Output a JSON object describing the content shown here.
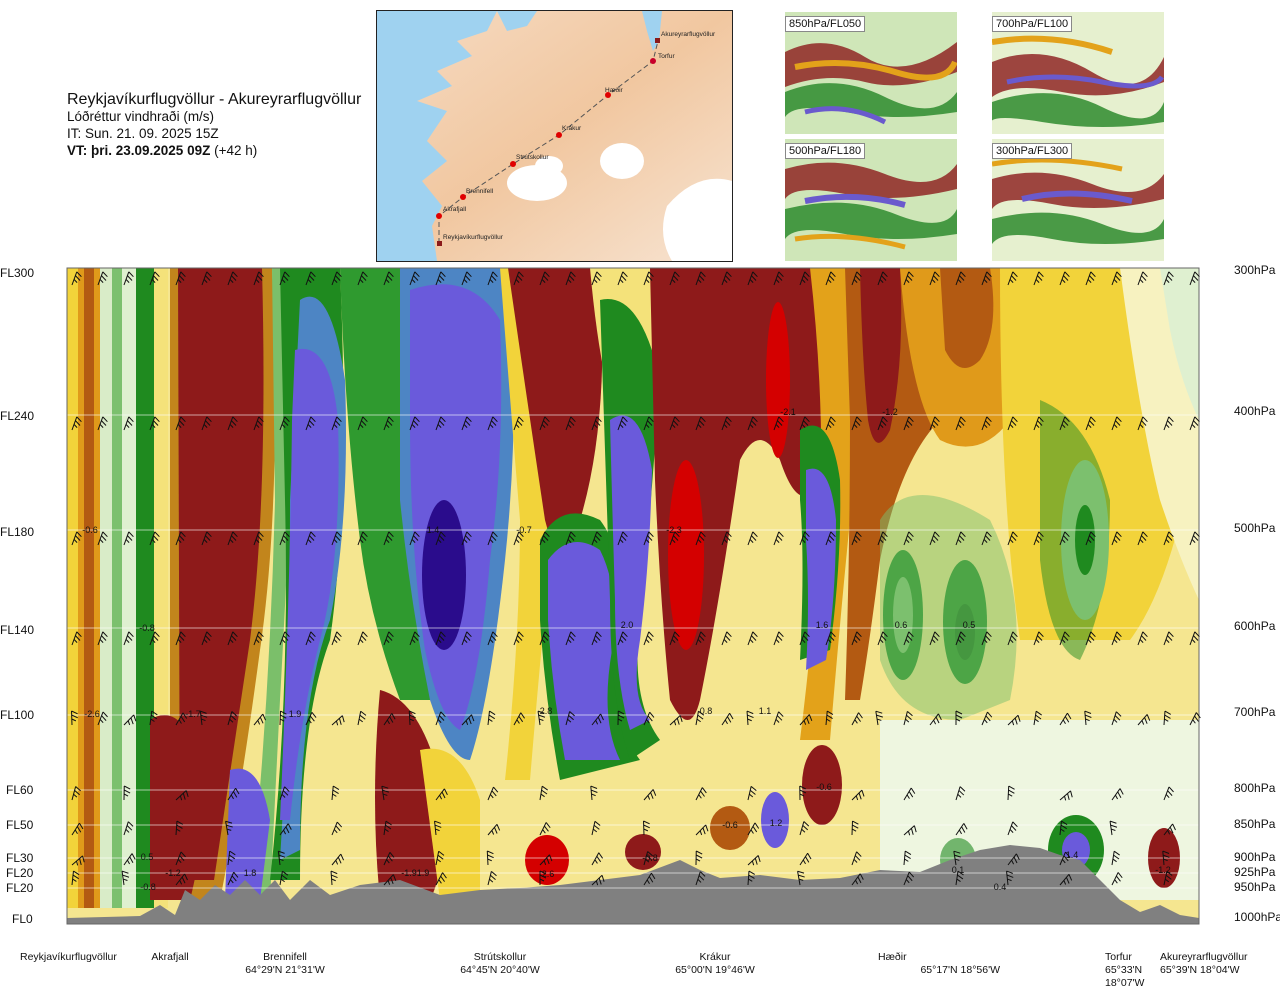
{
  "header": {
    "title": "Reykjavíkurflugvöllur - Akureyrarflugvöllur",
    "variable": "Lóðréttur vindhraði (m/s)",
    "issue_time": "IT: Sun. 21. 09. 2025 15Z",
    "valid_time_bold": "VT: þri. 23.09.2025 09Z",
    "valid_time_offset": " (+42 h)"
  },
  "route_map": {
    "stations": [
      "Akureyrarflugvöllur",
      "Torfur",
      "Hæðir",
      "Krákur",
      "Strútskollur",
      "Brennifell",
      "Akrafjall",
      "Reykjavíkurflugvöllur"
    ]
  },
  "thumbnails": [
    {
      "label": "850hPa/FL050"
    },
    {
      "label": "700hPa/FL100"
    },
    {
      "label": "500hPa/FL180"
    },
    {
      "label": "300hPa/FL300"
    }
  ],
  "chart_data": {
    "type": "heatmap",
    "title": "Reykjavíkurflugvöllur - Akureyrarflugvöllur",
    "quantity": "Lóðréttur vindhraði (m/s)",
    "y_left_labels": [
      "FL300",
      "FL240",
      "FL180",
      "FL140",
      "FL100",
      "FL60",
      "FL50",
      "FL30",
      "FL20",
      "FL20",
      "FL0"
    ],
    "y_right_labels": [
      "300hPa",
      "400hPa",
      "500hPa",
      "600hPa",
      "700hPa",
      "800hPa",
      "850hPa",
      "900hPa",
      "925hPa",
      "950hPa",
      "1000hPa"
    ],
    "x_stations": [
      {
        "name": "Reykjavíkurflugvöllur",
        "coord": ""
      },
      {
        "name": "Akrafjall",
        "coord": ""
      },
      {
        "name": "Brennifell",
        "coord": "64°29'N 21°31'W"
      },
      {
        "name": "Strútskollur",
        "coord": "64°45'N 20°40'W"
      },
      {
        "name": "Krákur",
        "coord": "65°00'N 19°46'W"
      },
      {
        "name": "Hæðir",
        "coord": "65°17'N 18°56'W"
      },
      {
        "name": "Torfur",
        "coord": "65°33'N 18°07'W"
      },
      {
        "name": "Akureyrarflugvöllur",
        "coord": "65°39'N 18°04'W"
      }
    ],
    "annotations": [
      "-0.6",
      "-0.8",
      "-0.8",
      "-1.7",
      "1.9",
      "1.8",
      "1.9",
      "1.4",
      "-0.7",
      "2.0",
      "2.8",
      "-2.3",
      "-2.1",
      "-1.2",
      "1.6",
      "0.8",
      "1.1",
      "0.6",
      "0.5",
      "-0.6",
      "-0.6",
      "1.2",
      "-0.8",
      "1.4",
      "0.1",
      "-1.2",
      "0.5",
      "0.4",
      "-1.2",
      "-1.9",
      "2.6",
      "-2.6"
    ],
    "color_scale": "red/brown = negative (downdraft), blue/purple = positive (updraft)"
  }
}
